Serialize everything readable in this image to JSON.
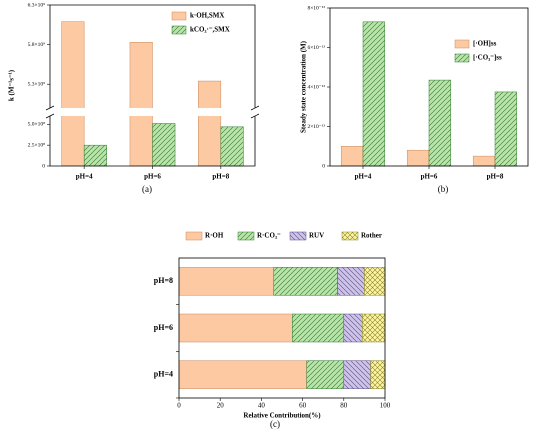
{
  "chart_data": [
    {
      "type": "bar",
      "caption": "(a)",
      "y_label": "k (M⁻¹s⁻¹)",
      "categories": [
        "pH=4",
        "pH=6",
        "pH=8"
      ],
      "series": [
        {
          "name": "k·OH,SMX",
          "color": "#fcc9a3",
          "hatch": "none",
          "values": [
            6090000000,
            5830000000,
            5340000000
          ]
        },
        {
          "name": "kCO₃·⁻,SMX",
          "color": "#b9e3a8",
          "hatch": "/",
          "values": [
            250000000,
            510000000,
            470000000
          ]
        }
      ],
      "ylim": [
        0,
        6300000000
      ],
      "axis_break": [
        600000000,
        5000000000
      ],
      "yticks": [
        0,
        {
          "value": 250000000,
          "label": "2.5×10⁸"
        },
        {
          "value": 500000000,
          "label": "5.0×10⁸"
        },
        {
          "value": 5300000000,
          "label": "5.3×10⁹"
        },
        {
          "value": 5800000000,
          "label": "5.8×10⁹"
        },
        {
          "value": 6300000000,
          "label": "6.3×10⁹"
        }
      ],
      "legend": "upper right"
    },
    {
      "type": "bar",
      "caption": "(b)",
      "y_label": "Steady state concentration (M)",
      "categories": [
        "pH=4",
        "pH=6",
        "pH=8"
      ],
      "series": [
        {
          "name": "[·OH]ss",
          "color": "#fcc9a3",
          "hatch": "none",
          "values": [
            1e-13,
            8e-14,
            5e-14
          ]
        },
        {
          "name": "[·CO₃⁻]ss",
          "color": "#b9e3a8",
          "hatch": "/",
          "values": [
            7.3e-13,
            4.35e-13,
            3.75e-13
          ]
        }
      ],
      "ylim": [
        0,
        8e-13
      ],
      "yticks": [
        0,
        {
          "value": 2e-13,
          "label": "2×10⁻¹³"
        },
        {
          "value": 4e-13,
          "label": "4×10⁻¹³"
        },
        {
          "value": 6e-13,
          "label": "6×10⁻¹³"
        },
        {
          "value": 8e-13,
          "label": "8×10⁻¹³"
        }
      ],
      "legend": "upper right"
    },
    {
      "type": "barh",
      "caption": "(c)",
      "x_label": "Relative Contribution(%)",
      "categories": [
        "pH=4",
        "pH=6",
        "pH=8"
      ],
      "series": [
        {
          "name": "R·OH",
          "color": "#fcc9a3",
          "hatch": "none",
          "values": [
            62,
            55,
            46
          ]
        },
        {
          "name": "R·CO₃⁻",
          "color": "#b9e3a8",
          "hatch": "/",
          "values": [
            18,
            25,
            31
          ]
        },
        {
          "name": "RUV",
          "color": "#cdc3e6",
          "hatch": "\\",
          "values": [
            13,
            9,
            13
          ]
        },
        {
          "name": "Rother",
          "color": "#fff3a3",
          "hatch": "x",
          "values": [
            7,
            11,
            10
          ]
        }
      ],
      "xlim": [
        0,
        100
      ],
      "xticks": [
        0,
        20,
        40,
        60,
        80,
        100
      ],
      "legend": "upper center"
    }
  ]
}
